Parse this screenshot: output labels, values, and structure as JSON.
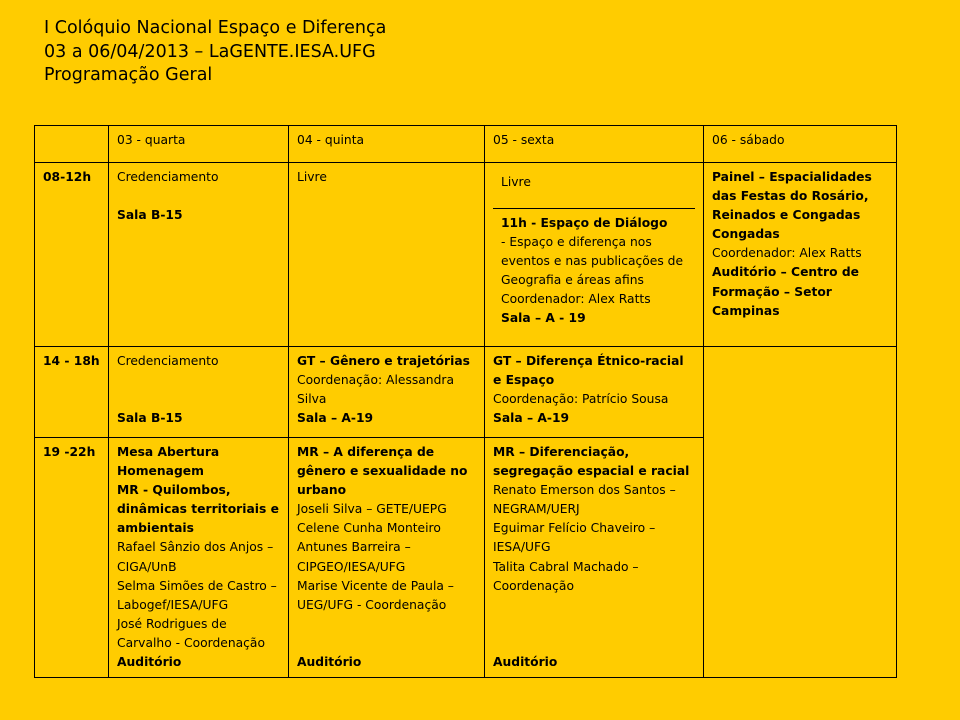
{
  "header": {
    "line1": "I Colóquio Nacional Espaço e Diferença",
    "line2": "03 a 06/04/2013 – LaGENTE.IESA.UFG",
    "line3": "Programação Geral"
  },
  "columns": [
    "",
    "03 - quarta",
    "04 - quinta",
    "05 - sexta",
    "06 - sábado"
  ],
  "rows": {
    "morning": {
      "time": "08-12h",
      "wed": {
        "line1": "Credenciamento",
        "room": "Sala B-15"
      },
      "thu": {
        "line1": "Livre"
      },
      "fri": {
        "top": "Livre",
        "title": "11h - Espaço de Diálogo",
        "desc": "- Espaço e diferença nos eventos e nas publicações de Geografia e áreas afins",
        "coord": "Coordenador: Alex Ratts",
        "room": "Sala – A - 19"
      },
      "sat": {
        "title": "Painel – Espacialidades das Festas do Rosário, Reinados e Congadas",
        "subtitle": "Congadas",
        "coord": "Coordenador: Alex Ratts",
        "room": "Auditório – Centro de Formação – Setor Campinas"
      }
    },
    "afternoon": {
      "time": "14 - 18h",
      "wed": {
        "line1": "Credenciamento",
        "room": "Sala B-15"
      },
      "thu": {
        "title": "GT – Gênero e trajetórias",
        "coord": "Coordenação: Alessandra Silva",
        "room": "Sala – A-19"
      },
      "fri": {
        "title": "GT – Diferença Étnico-racial e Espaço",
        "coord": "Coordenação: Patrício Sousa",
        "room": "Sala – A-19"
      }
    },
    "evening": {
      "time": "19 -22h",
      "wed": {
        "title": "Mesa Abertura",
        "title2": "Homenagem",
        "title3": "MR - Quilombos, dinâmicas territoriais e ambientais",
        "p1": "Rafael Sânzio dos Anjos – CIGA/UnB",
        "p2": "Selma Simões de Castro – Labogef/IESA/UFG",
        "p3": "José Rodrigues de Carvalho - Coordenação",
        "room": "Auditório"
      },
      "thu": {
        "title": "MR – A diferença de gênero e sexualidade no urbano",
        "p1": "Joseli Silva – GETE/UEPG",
        "p2": "Celene Cunha Monteiro Antunes Barreira – CIPGEO/IESA/UFG",
        "p3": "Marise Vicente de Paula – UEG/UFG - Coordenação",
        "room": "Auditório"
      },
      "fri": {
        "title": "MR – Diferenciação, segregação espacial e racial",
        "p1": "Renato Emerson dos Santos – NEGRAM/UERJ",
        "p2": "Eguimar Felício Chaveiro – IESA/UFG",
        "p3": "Talita Cabral Machado – Coordenação",
        "room": "Auditório"
      }
    }
  },
  "colors": {
    "background": "#ffcc00",
    "text": "#000000",
    "border": "#000000"
  }
}
